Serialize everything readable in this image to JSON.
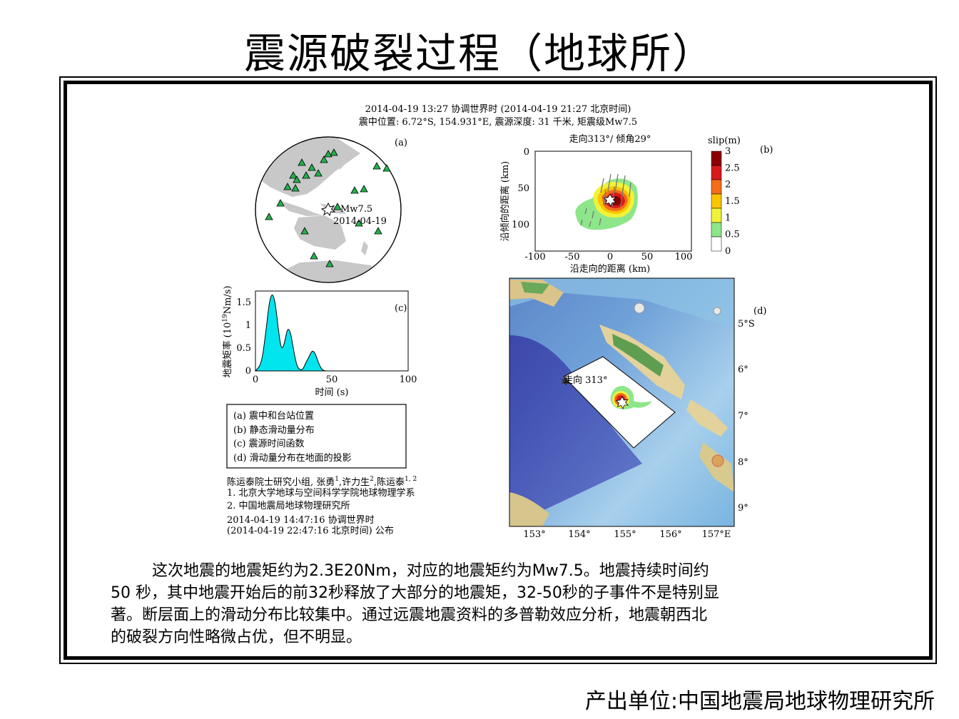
{
  "title": "震源破裂过程（地球所）",
  "header": {
    "line1": "2014-04-19 13:27 协调世界时  (2014-04-19 21:27 北京时间)",
    "line2": "震中位置: 6.72°S, 154.931°E,  震源深度: 31 千米,  矩震级Mw7.5"
  },
  "panel_a": {
    "label": "(a)",
    "event_mag": "Mw7.5",
    "event_date": "2014-04-19",
    "stations": 23
  },
  "panel_b": {
    "label": "(b)",
    "title": "走向313°/ 倾角29°",
    "xlabel": "沿走向的距离 (km)",
    "ylabel": "沿倾向的距离 (km)",
    "xticks": [
      "-100",
      "-50",
      "0",
      "50",
      "100"
    ],
    "yticks": [
      "0",
      "50",
      "100"
    ],
    "colorbar_title": "slip(m)",
    "colorbar_ticks": [
      "3",
      "2.5",
      "2",
      "1.5",
      "1",
      "0.5",
      "0"
    ],
    "colorbar_colors": [
      "#8b0000",
      "#d7191c",
      "#f46d1a",
      "#f7c600",
      "#f2f23a",
      "#8ee68a",
      "#ffffff"
    ]
  },
  "panel_c": {
    "label": "(c)",
    "xlabel": "时间 (s)",
    "ylabel": "地震矩率 (10",
    "ylabel_sup": "19",
    "ylabel_unit": "Nm/s)",
    "xticks": [
      "0",
      "50",
      "100"
    ],
    "yticks": [
      "0",
      "0.5",
      "1",
      "1.5"
    ],
    "fill_color": "#00e5ee"
  },
  "chart_data": {
    "type": "area",
    "title": "",
    "xlabel": "时间 (s)",
    "ylabel": "地震矩率 (10^19 Nm/s)",
    "xlim": [
      0,
      100
    ],
    "ylim": [
      0,
      1.75
    ],
    "x": [
      0,
      4,
      7,
      9,
      11,
      13,
      15,
      17,
      19,
      21,
      23,
      25,
      27,
      29,
      31,
      33,
      35,
      37,
      39,
      41,
      43,
      45,
      47
    ],
    "y": [
      0,
      0.15,
      0.9,
      1.5,
      1.72,
      1.5,
      0.9,
      0.45,
      0.6,
      0.95,
      0.85,
      0.45,
      0.12,
      0.02,
      0.03,
      0.18,
      0.3,
      0.45,
      0.4,
      0.2,
      0.05,
      0.0,
      0.0
    ]
  },
  "panel_d": {
    "label": "(d)",
    "strike_text": "走向 313°",
    "lon_ticks": [
      "153°",
      "154°",
      "155°",
      "156°",
      "157°E"
    ],
    "lat_ticks": [
      "5°S",
      "6°",
      "7°",
      "8°",
      "9°"
    ]
  },
  "legend": {
    "items": [
      "(a) 震中和台站位置",
      "(b) 静态滑动量分布",
      "(c) 震源时间函数",
      "(d) 滑动量分布在地面的投影"
    ]
  },
  "credits": {
    "authors_prefix": "陈运泰院士研究小组, 张勇",
    "sup1": "1",
    "author2": ",许力生",
    "sup2": "2",
    "author3": ",陈运泰",
    "sup3": "1, 2",
    "affil1": "1. 北京大学地球与空间科学学院地球物理学系",
    "affil2": "2. 中国地震局地球物理研究所",
    "time1": "2014-04-19 14:47:16 协调世界时",
    "time2": "(2014-04-19 22:47:16 北京时间)  公布"
  },
  "description": {
    "line1": "这次地震的地震矩约为2.3E20Nm，对应的地震矩约为Mw7.5。地震持续时间约",
    "line2": "50 秒，其中地震开始后的前32秒释放了大部分的地震矩，32-50秒的子事件不是特别显",
    "line3": "著。断层面上的滑动分布比较集中。通过远震地震资料的多普勒效应分析，地震朝西北",
    "line4": "的破裂方向性略微占优，但不明显。"
  },
  "footer": "产出单位:中国地震局地球物理研究所"
}
